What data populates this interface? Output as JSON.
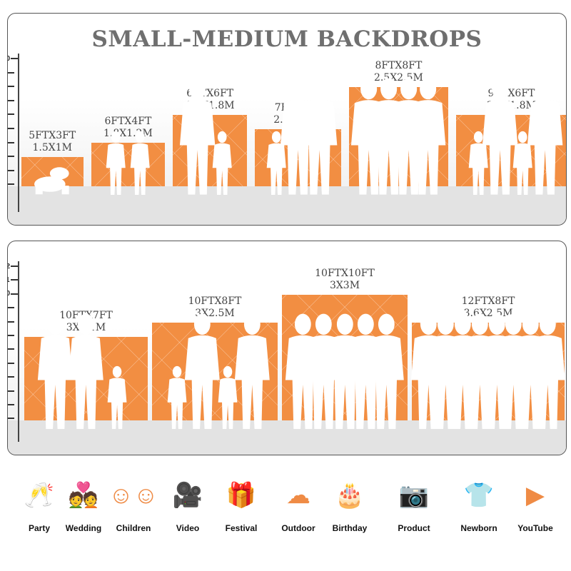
{
  "title": "SMALL-MEDIUM BACKDROPS",
  "accent_color": "#f28e42",
  "panels": [
    {
      "ticks": [
        1,
        2,
        3,
        4,
        5,
        6,
        7,
        8,
        9,
        10
      ],
      "backdrops": [
        {
          "label_ft": "5FTX3FT",
          "label_m": "1.5X1M",
          "width_ft": 5,
          "height_ft": 3,
          "people": [
            "crawling-baby"
          ]
        },
        {
          "label_ft": "6FTX4FT",
          "label_m": "1.8X1.2M",
          "width_ft": 6,
          "height_ft": 4,
          "people": [
            "child",
            "child"
          ]
        },
        {
          "label_ft": "6FTX6FT",
          "label_m": "1.8X1.8M",
          "width_ft": 6,
          "height_ft": 6,
          "people": [
            "adult",
            "child"
          ]
        },
        {
          "label_ft": "7FTX5FT",
          "label_m": "2.2X1.5M",
          "width_ft": 7,
          "height_ft": 5,
          "people": [
            "child",
            "adult",
            "adult"
          ]
        },
        {
          "label_ft": "8FTX8FT",
          "label_m": "2.5X2.5M",
          "width_ft": 8,
          "height_ft": 8,
          "people": [
            "adult",
            "adult",
            "adult",
            "adult"
          ]
        },
        {
          "label_ft": "9FTX6FT",
          "label_m": "2.7X1.8M",
          "width_ft": 9,
          "height_ft": 6,
          "people": [
            "child",
            "adult",
            "child",
            "adult"
          ]
        }
      ]
    },
    {
      "ticks": [
        1,
        2,
        3,
        4,
        5,
        6,
        7,
        8,
        9,
        10,
        11,
        12
      ],
      "backdrops": [
        {
          "label_ft": "10FTX7FT",
          "label_m": "3X2.1M",
          "width_ft": 10,
          "height_ft": 7,
          "people": [
            "adult",
            "adult",
            "child"
          ]
        },
        {
          "label_ft": "10FTX8FT",
          "label_m": "3X2.5M",
          "width_ft": 10,
          "height_ft": 8,
          "people": [
            "child",
            "adult",
            "child",
            "adult"
          ]
        },
        {
          "label_ft": "10FTX10FT",
          "label_m": "3X3M",
          "width_ft": 10,
          "height_ft": 10,
          "people": [
            "adult",
            "adult",
            "adult",
            "adult",
            "adult"
          ]
        },
        {
          "label_ft": "12FTX8FT",
          "label_m": "3.6X2.5M",
          "width_ft": 12,
          "height_ft": 8,
          "people": [
            "adult",
            "adult",
            "adult",
            "adult",
            "adult",
            "adult",
            "adult",
            "adult"
          ]
        }
      ]
    }
  ],
  "categories": [
    {
      "label": "Party",
      "icon": "wine-glasses-icon",
      "glyph": "🥂"
    },
    {
      "label": "Wedding",
      "icon": "wedding-couple-icon",
      "glyph": "💑"
    },
    {
      "label": "Children",
      "icon": "children-faces-icon",
      "glyph": "☺☺"
    },
    {
      "label": "Video",
      "icon": "film-camera-icon",
      "glyph": "🎥"
    },
    {
      "label": "Festival",
      "icon": "gift-box-icon",
      "glyph": "🎁"
    },
    {
      "label": "Outdoor",
      "icon": "cloud-icon",
      "glyph": "☁"
    },
    {
      "label": "Birthday",
      "icon": "birthday-cake-icon",
      "glyph": "🎂"
    },
    {
      "label": "Product",
      "icon": "camera-icon",
      "glyph": "📷"
    },
    {
      "label": "Newborn",
      "icon": "baby-onesie-icon",
      "glyph": "👕"
    },
    {
      "label": "YouTube",
      "icon": "play-button-icon",
      "glyph": "▶"
    }
  ]
}
